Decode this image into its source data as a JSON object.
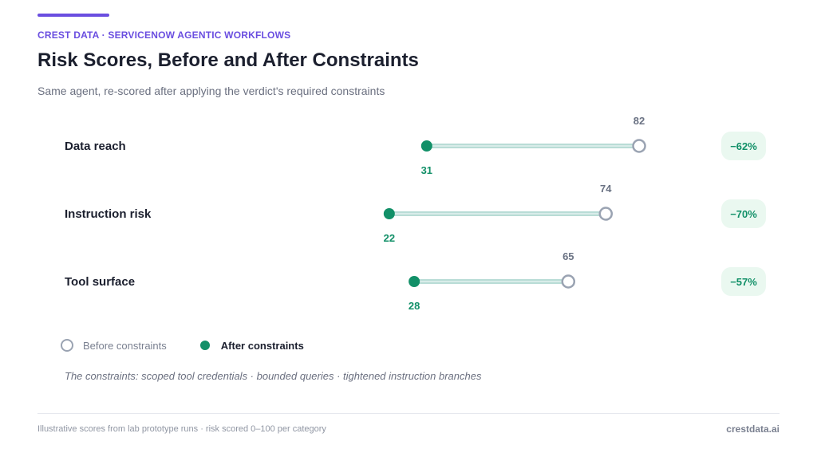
{
  "header": {
    "eyebrow": "CREST DATA · SERVICENOW AGENTIC WORKFLOWS",
    "title": "Risk Scores, Before and After Constraints",
    "subtitle": "Same agent, re-scored after applying the verdict's required constraints"
  },
  "colors": {
    "accent": "#6a4ee0",
    "before": "#9aa3b2",
    "after": "#129068",
    "connector": "#b9dcd6",
    "change_badge_bg": "#eaf8f0",
    "change_text": "#129068"
  },
  "chart_data": {
    "type": "dumbbell",
    "categories": [
      "Data reach",
      "Instruction risk",
      "Tool surface"
    ],
    "series": [
      {
        "name": "Before constraints",
        "values": [
          82,
          74,
          65
        ]
      },
      {
        "name": "After constraints",
        "values": [
          31,
          22,
          28
        ]
      }
    ],
    "changes": [
      "−62%",
      "−70%",
      "−57%"
    ],
    "xlim": [
      0,
      100
    ],
    "grid": false,
    "legend_position": "bottom-left"
  },
  "legend": {
    "before_label": "Before constraints",
    "after_label": "After constraints"
  },
  "note": "The constraints: scoped tool credentials · bounded queries · tightened instruction branches",
  "footer": {
    "left": "Illustrative scores from lab prototype runs · risk scored 0–100 per category",
    "right": "crestdata.ai"
  }
}
